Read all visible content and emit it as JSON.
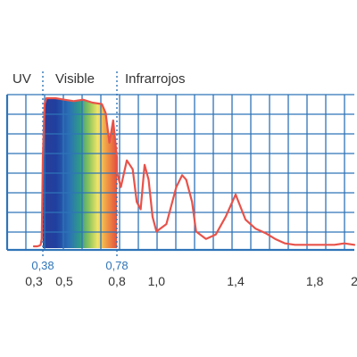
{
  "chart_data": {
    "type": "line",
    "region_labels": [
      "UV",
      "Visible",
      "Infrarrojos"
    ],
    "region_boundaries": [
      0.38,
      0.78
    ],
    "x_ticks": [
      {
        "value": 0.3,
        "label": "0,3"
      },
      {
        "value": 0.5,
        "label": "0,5"
      },
      {
        "value": 0.8,
        "label": "0,8"
      },
      {
        "value": 1.0,
        "label": "1,0"
      },
      {
        "value": 1.4,
        "label": "1,4"
      },
      {
        "value": 1.8,
        "label": "1,8"
      },
      {
        "value": 2.0,
        "label": "2"
      }
    ],
    "x_ticks_highlight": [
      {
        "value": 0.38,
        "label": "0,38"
      },
      {
        "value": 0.78,
        "label": "0,78"
      }
    ],
    "xlim": [
      0.3,
      2.0
    ],
    "ylim": [
      0,
      100
    ],
    "grid": true,
    "series": [
      {
        "color": "#e8524a",
        "x": [
          0.3,
          0.33,
          0.35,
          0.36,
          0.37,
          0.38,
          0.39,
          0.4,
          0.42,
          0.45,
          0.5,
          0.55,
          0.6,
          0.65,
          0.7,
          0.72,
          0.74,
          0.76,
          0.78,
          0.8,
          0.82,
          0.85,
          0.88,
          0.9,
          0.92,
          0.94,
          0.96,
          0.98,
          1.0,
          1.05,
          1.1,
          1.13,
          1.15,
          1.18,
          1.2,
          1.25,
          1.3,
          1.35,
          1.4,
          1.45,
          1.5,
          1.55,
          1.6,
          1.65,
          1.7,
          1.75,
          1.8,
          1.85,
          1.9,
          1.95,
          2.0
        ],
        "y": [
          0,
          0,
          0.5,
          1,
          5,
          60,
          96,
          100,
          100,
          100,
          99,
          98,
          99,
          97,
          96,
          90,
          70,
          85,
          60,
          50,
          40,
          58,
          52,
          30,
          25,
          55,
          45,
          20,
          10,
          15,
          40,
          48,
          45,
          30,
          10,
          5,
          8,
          20,
          35,
          18,
          12,
          9,
          5,
          2,
          1,
          1,
          1,
          1,
          1,
          2,
          1
        ]
      }
    ]
  }
}
